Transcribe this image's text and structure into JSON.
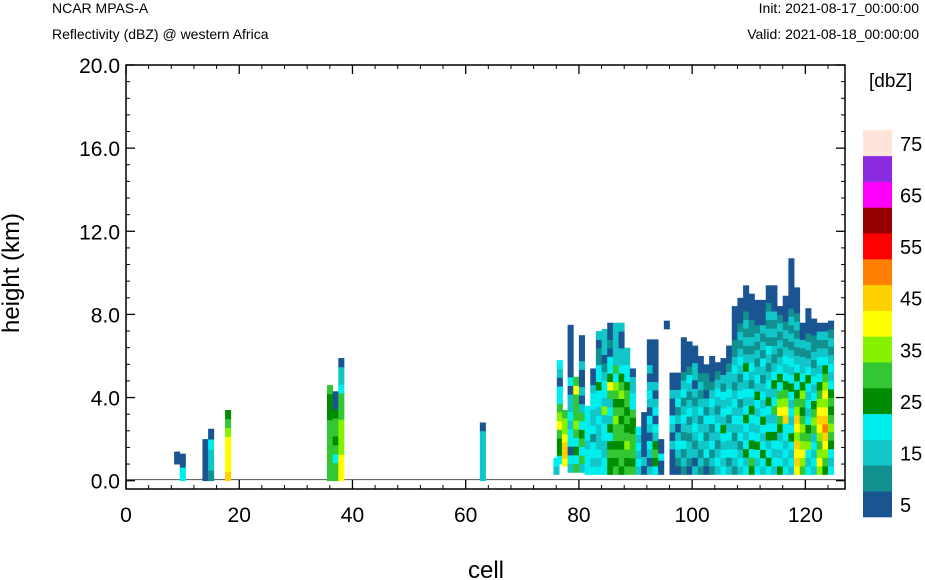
{
  "header": {
    "model": "NCAR MPAS-A",
    "field": "Reflectivity (dBZ) @ western Africa",
    "init": "Init: 2021-08-17_00:00:00",
    "valid": "Valid: 2021-08-18_00:00:00"
  },
  "colorbar": {
    "title": "[dbZ]",
    "levels": [
      5,
      10,
      15,
      20,
      25,
      30,
      35,
      40,
      45,
      50,
      55,
      60,
      65,
      70,
      75
    ],
    "labels": [
      "5",
      "15",
      "25",
      "35",
      "45",
      "55",
      "65",
      "75"
    ],
    "colors": [
      "#1a5592",
      "#11908f",
      "#10c6c8",
      "#00eeee",
      "#008c00",
      "#33c733",
      "#86f200",
      "#ffff00",
      "#ffd000",
      "#ff8000",
      "#ff0000",
      "#960000",
      "#ff00ff",
      "#8a2be2",
      "#ffe4da"
    ]
  },
  "chart_data": {
    "type": "heatmap",
    "xlabel": "cell",
    "ylabel": "height (km)",
    "xlim": [
      0,
      127
    ],
    "ylim": [
      -0.4,
      20.0
    ],
    "xticks": [
      "0",
      "20",
      "40",
      "60",
      "80",
      "100",
      "120"
    ],
    "xtick_values": [
      0,
      20,
      40,
      60,
      80,
      100,
      120
    ],
    "yticks": [
      "0.0",
      "4.0",
      "8.0",
      "12.0",
      "16.0",
      "20.0"
    ],
    "ytick_values": [
      0,
      4,
      8,
      12,
      16,
      20
    ],
    "y_cell_size_km": 0.4,
    "columns": [
      {
        "x": 9,
        "y0": 0.8,
        "y1": 1.4,
        "dbz": [
          5
        ]
      },
      {
        "x": 10,
        "y0": 0.0,
        "y1": 1.3,
        "dbz": [
          20,
          20,
          5,
          5
        ]
      },
      {
        "x": 14,
        "y0": 0.0,
        "y1": 2.0,
        "dbz": [
          5,
          5,
          5,
          5,
          5
        ]
      },
      {
        "x": 15,
        "y0": 0.0,
        "y1": 2.5,
        "dbz": [
          10,
          15,
          15,
          20,
          5
        ]
      },
      {
        "x": 18,
        "y0": 0.0,
        "y1": 3.4,
        "dbz": [
          45,
          40,
          40,
          40,
          40,
          35,
          30,
          25
        ]
      },
      {
        "x": 36,
        "y0": 0.0,
        "y1": 4.6,
        "dbz": [
          30,
          30,
          30,
          30,
          30,
          30,
          30,
          25,
          25,
          25,
          30
        ]
      },
      {
        "x": 37,
        "y0": 0.0,
        "y1": 4.3,
        "dbz": [
          30,
          30,
          20,
          30,
          25,
          30,
          30,
          25,
          5,
          5
        ]
      },
      {
        "x": 38,
        "y0": 0.0,
        "y1": 5.9,
        "dbz": [
          40,
          40,
          40,
          35,
          35,
          35,
          35,
          30,
          30,
          30,
          20,
          15,
          15,
          5
        ]
      },
      {
        "x": 63,
        "y0": 0.0,
        "y1": 2.8,
        "dbz": [
          15,
          15,
          15,
          15,
          15,
          15,
          5
        ]
      },
      {
        "x": 76,
        "y0": 0.3,
        "y1": 1.1,
        "dbz": [
          15,
          20
        ]
      },
      {
        "x": 76.6,
        "y0": 0.8,
        "y1": 5.8,
        "dbz": [
          20,
          25,
          25,
          30,
          40,
          35,
          30,
          20,
          20,
          5,
          15,
          20
        ]
      },
      {
        "x": 77.5,
        "y0": 0.7,
        "y1": 3.4,
        "dbz": [
          40,
          45,
          45,
          40,
          35,
          35,
          30
        ]
      },
      {
        "x": 78.5,
        "y0": 0.4,
        "y1": 7.5,
        "dbz": [
          15,
          20,
          5,
          20,
          20,
          15,
          20,
          15,
          15,
          5,
          20,
          5,
          5,
          5,
          5,
          5,
          5
        ]
      },
      {
        "x": 79.5,
        "y0": 0.4,
        "y1": 5.0,
        "dbz": [
          30,
          20,
          25,
          20,
          30,
          35,
          30,
          30,
          30,
          40,
          30
        ]
      },
      {
        "x": 80.5,
        "y0": 0.4,
        "y1": 7.0,
        "dbz": [
          15,
          30,
          20,
          30,
          25,
          20,
          30,
          15,
          5,
          15,
          5,
          5,
          15,
          5,
          5,
          5
        ]
      },
      {
        "x": 81.5,
        "y0": 0.3,
        "y1": 3.6,
        "dbz": [
          20,
          20,
          20,
          15,
          20,
          20,
          20,
          20
        ]
      },
      {
        "x": 82.5,
        "y0": 0.3,
        "y1": 5.4,
        "dbz": [
          20,
          15,
          20,
          20,
          10,
          20,
          15,
          15,
          20,
          20,
          15,
          5,
          5
        ]
      },
      {
        "x": 83.5,
        "y0": 0.3,
        "y1": 7.2,
        "dbz": [
          20,
          15,
          20,
          15,
          15,
          15,
          20,
          15,
          20,
          20,
          25,
          20,
          20,
          10,
          10,
          5,
          15
        ]
      },
      {
        "x": 84.5,
        "y0": 0.3,
        "y1": 7.3,
        "dbz": [
          20,
          20,
          15,
          15,
          20,
          20,
          15,
          35,
          15,
          20,
          20,
          15,
          10,
          5,
          15,
          15,
          15
        ]
      },
      {
        "x": 85.5,
        "y0": 0.3,
        "y1": 7.6,
        "dbz": [
          25,
          25,
          30,
          25,
          20,
          25,
          15,
          20,
          15,
          30,
          40,
          25,
          20,
          20,
          5,
          10,
          5,
          5
        ]
      },
      {
        "x": 86.5,
        "y0": 0.3,
        "y1": 7.6,
        "dbz": [
          30,
          25,
          30,
          25,
          30,
          30,
          35,
          30,
          25,
          30,
          35,
          20,
          30,
          15,
          15,
          15,
          15,
          15
        ]
      },
      {
        "x": 87.5,
        "y0": 0.3,
        "y1": 7.6,
        "dbz": [
          25,
          30,
          30,
          25,
          30,
          30,
          25,
          30,
          25,
          35,
          30,
          25,
          20,
          15,
          15,
          5,
          5,
          15
        ]
      },
      {
        "x": 88.5,
        "y0": 0.3,
        "y1": 6.4,
        "dbz": [
          30,
          25,
          30,
          35,
          30,
          25,
          30,
          25,
          30,
          30,
          25,
          20,
          20,
          15,
          15
        ]
      },
      {
        "x": 89.5,
        "y0": 0.3,
        "y1": 5.4,
        "dbz": [
          30,
          25,
          30,
          30,
          30,
          25,
          25,
          30,
          20,
          20,
          15,
          15,
          5
        ]
      },
      {
        "x": 90.5,
        "y0": 0.3,
        "y1": 2.6,
        "dbz": [
          15,
          20,
          15,
          20,
          15,
          20
        ]
      },
      {
        "x": 91.5,
        "y0": 0.3,
        "y1": 3.3,
        "dbz": [
          5,
          15,
          5,
          5,
          5,
          5,
          5
        ]
      },
      {
        "x": 92.5,
        "y0": 0.3,
        "y1": 6.8,
        "dbz": [
          15,
          5,
          15,
          20,
          5,
          15,
          20,
          5,
          15,
          20,
          15,
          5,
          15,
          5,
          5,
          5
        ]
      },
      {
        "x": 93.5,
        "y0": 0.3,
        "y1": 6.8,
        "dbz": [
          20,
          25,
          30,
          25,
          15,
          20,
          5,
          20,
          15,
          5,
          15,
          5,
          5,
          5,
          5,
          5
        ]
      },
      {
        "x": 94.5,
        "y0": 0.3,
        "y1": 2.0,
        "dbz": [
          5,
          5,
          20,
          5,
          5
        ]
      },
      {
        "x": 95.5,
        "y0": 7.3,
        "y1": 7.7,
        "dbz": [
          5
        ]
      },
      {
        "x": 96.5,
        "y0": 0.3,
        "y1": 5.2,
        "dbz": [
          5,
          5,
          5,
          15,
          5,
          15,
          20,
          5,
          5,
          15,
          5,
          5
        ]
      },
      {
        "x": 97.5,
        "y0": 0.3,
        "y1": 5.2,
        "dbz": [
          5,
          10,
          15,
          20,
          15,
          5,
          15,
          10,
          20,
          15,
          5,
          5
        ]
      },
      {
        "x": 98.5,
        "y0": 0.3,
        "y1": 6.9,
        "dbz": [
          10,
          15,
          10,
          20,
          10,
          15,
          20,
          15,
          10,
          20,
          15,
          10,
          5,
          5,
          5,
          5
        ]
      },
      {
        "x": 99.5,
        "y0": 0.3,
        "y1": 6.7,
        "dbz": [
          5,
          10,
          15,
          15,
          10,
          15,
          10,
          20,
          15,
          10,
          15,
          20,
          10,
          5,
          5,
          5
        ]
      },
      {
        "x": 100.5,
        "y0": 0.3,
        "y1": 6.5,
        "dbz": [
          15,
          5,
          15,
          10,
          15,
          20,
          15,
          15,
          10,
          15,
          5,
          15,
          15,
          5,
          5
        ]
      },
      {
        "x": 101.5,
        "y0": 0.3,
        "y1": 6.0,
        "dbz": [
          10,
          15,
          10,
          15,
          20,
          15,
          10,
          20,
          15,
          10,
          15,
          10,
          5,
          5
        ]
      },
      {
        "x": 102.5,
        "y0": 0.3,
        "y1": 5.6,
        "dbz": [
          5,
          10,
          20,
          15,
          10,
          15,
          20,
          10,
          15,
          5,
          10,
          10,
          5
        ]
      },
      {
        "x": 103.5,
        "y0": 0.3,
        "y1": 6.0,
        "dbz": [
          10,
          15,
          10,
          20,
          15,
          10,
          20,
          15,
          20,
          15,
          10,
          5,
          5,
          5
        ]
      },
      {
        "x": 104.5,
        "y0": 0.3,
        "y1": 5.7,
        "dbz": [
          15,
          20,
          15,
          10,
          15,
          20,
          15,
          10,
          15,
          20,
          15,
          10,
          5
        ]
      },
      {
        "x": 105.5,
        "y0": 0.3,
        "y1": 5.9,
        "dbz": [
          20,
          15,
          20,
          15,
          20,
          25,
          15,
          20,
          15,
          20,
          10,
          15,
          5,
          5
        ]
      },
      {
        "x": 106.5,
        "y0": 0.3,
        "y1": 6.5,
        "dbz": [
          15,
          10,
          20,
          15,
          20,
          15,
          10,
          20,
          15,
          20,
          15,
          15,
          10,
          5,
          5
        ]
      },
      {
        "x": 107.5,
        "y0": 0.3,
        "y1": 8.4,
        "dbz": [
          10,
          15,
          20,
          15,
          10,
          15,
          20,
          15,
          20,
          15,
          10,
          15,
          20,
          15,
          10,
          10,
          5,
          5,
          5,
          5
        ]
      },
      {
        "x": 108.5,
        "y0": 0.3,
        "y1": 8.8,
        "dbz": [
          15,
          20,
          15,
          10,
          20,
          15,
          20,
          15,
          10,
          20,
          15,
          10,
          15,
          20,
          15,
          10,
          15,
          10,
          5,
          5,
          5
        ]
      },
      {
        "x": 109.5,
        "y0": 0.3,
        "y1": 9.4,
        "dbz": [
          20,
          15,
          25,
          20,
          15,
          20,
          25,
          20,
          15,
          20,
          15,
          20,
          25,
          15,
          10,
          15,
          10,
          15,
          10,
          5,
          5,
          5
        ]
      },
      {
        "x": 110.5,
        "y0": 0.3,
        "y1": 9.0,
        "dbz": [
          25,
          30,
          20,
          25,
          20,
          15,
          20,
          25,
          15,
          20,
          10,
          15,
          20,
          15,
          10,
          15,
          10,
          10,
          5,
          5,
          5
        ]
      },
      {
        "x": 111.5,
        "y0": 0.3,
        "y1": 8.7,
        "dbz": [
          20,
          15,
          20,
          25,
          20,
          15,
          20,
          15,
          20,
          25,
          15,
          20,
          15,
          10,
          15,
          10,
          15,
          10,
          5,
          5,
          5
        ]
      },
      {
        "x": 112.5,
        "y0": 0.3,
        "y1": 8.7,
        "dbz": [
          15,
          20,
          25,
          20,
          15,
          20,
          25,
          20,
          15,
          20,
          15,
          10,
          15,
          20,
          10,
          15,
          10,
          15,
          5,
          5,
          5
        ]
      },
      {
        "x": 113.5,
        "y0": 0.3,
        "y1": 9.4,
        "dbz": [
          20,
          25,
          20,
          15,
          25,
          20,
          15,
          20,
          25,
          15,
          20,
          15,
          10,
          15,
          20,
          10,
          15,
          10,
          15,
          10,
          5,
          5
        ]
      },
      {
        "x": 114.5,
        "y0": 0.3,
        "y1": 9.4,
        "dbz": [
          15,
          20,
          15,
          20,
          25,
          20,
          15,
          30,
          20,
          15,
          25,
          20,
          15,
          10,
          15,
          10,
          15,
          10,
          15,
          5,
          5,
          5
        ]
      },
      {
        "x": 115.5,
        "y0": 0.3,
        "y1": 8.4,
        "dbz": [
          25,
          20,
          15,
          20,
          15,
          25,
          30,
          40,
          35,
          30,
          20,
          25,
          20,
          15,
          10,
          15,
          10,
          15,
          10,
          5
        ]
      },
      {
        "x": 116.5,
        "y0": 0.3,
        "y1": 8.9,
        "dbz": [
          20,
          15,
          20,
          15,
          20,
          20,
          45,
          40,
          35,
          30,
          25,
          20,
          15,
          20,
          15,
          10,
          15,
          10,
          5,
          5,
          5
        ]
      },
      {
        "x": 117.5,
        "y0": 0.3,
        "y1": 10.7,
        "dbz": [
          15,
          20,
          15,
          20,
          25,
          20,
          15,
          20,
          15,
          20,
          25,
          20,
          15,
          20,
          15,
          10,
          15,
          10,
          15,
          10,
          5,
          5,
          5,
          5,
          5,
          5
        ]
      },
      {
        "x": 118.5,
        "y0": 0.3,
        "y1": 9.3,
        "dbz": [
          40,
          45,
          40,
          45,
          35,
          40,
          45,
          35,
          30,
          25,
          20,
          25,
          20,
          15,
          10,
          15,
          10,
          15,
          10,
          5,
          5,
          5
        ]
      },
      {
        "x": 119.5,
        "y0": 0.3,
        "y1": 7.6,
        "dbz": [
          30,
          35,
          40,
          35,
          30,
          35,
          30,
          25,
          30,
          35,
          25,
          20,
          15,
          15,
          10,
          15,
          5,
          5
        ]
      },
      {
        "x": 120.5,
        "y0": 0.3,
        "y1": 8.3,
        "dbz": [
          20,
          15,
          20,
          35,
          30,
          25,
          20,
          15,
          20,
          15,
          20,
          25,
          20,
          15,
          10,
          15,
          10,
          5,
          5,
          5
        ]
      },
      {
        "x": 121.5,
        "y0": 0.3,
        "y1": 7.8,
        "dbz": [
          15,
          20,
          15,
          20,
          15,
          30,
          35,
          30,
          25,
          20,
          15,
          20,
          15,
          10,
          15,
          10,
          10,
          5,
          5
        ]
      },
      {
        "x": 122.5,
        "y0": 0.3,
        "y1": 7.6,
        "dbz": [
          35,
          40,
          35,
          30,
          35,
          40,
          45,
          40,
          35,
          30,
          25,
          20,
          15,
          20,
          15,
          10,
          15,
          5
        ]
      },
      {
        "x": 123.5,
        "y0": 0.3,
        "y1": 7.6,
        "dbz": [
          25,
          30,
          35,
          40,
          45,
          50,
          45,
          40,
          35,
          40,
          35,
          30,
          25,
          20,
          15,
          10,
          15,
          5
        ]
      },
      {
        "x": 124.5,
        "y0": 0.3,
        "y1": 7.7,
        "dbz": [
          20,
          15,
          20,
          25,
          30,
          35,
          30,
          25,
          30,
          25,
          20,
          15,
          20,
          15,
          10,
          15,
          10,
          5
        ]
      }
    ]
  }
}
